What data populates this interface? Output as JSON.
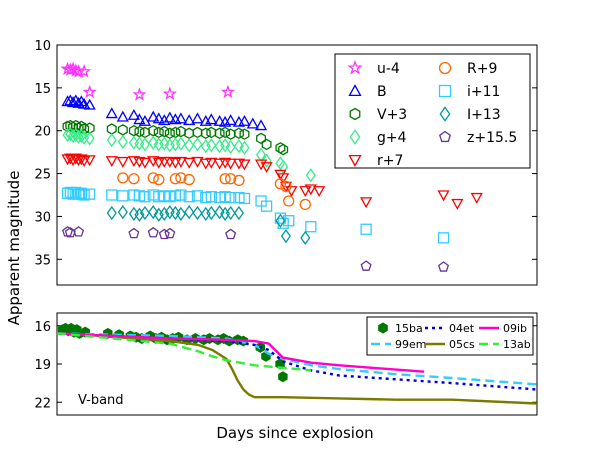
{
  "labels": {
    "ylabel": "Apparent magnitude",
    "xlabel": "Days since explosion",
    "panel_label": "V-band"
  },
  "chart_data": [
    {
      "type": "scatter",
      "ylabel": "Apparent magnitude",
      "ylim": [
        10,
        38
      ],
      "y_inverted": true,
      "yticks": [
        "10",
        "15",
        "20",
        "25",
        "30",
        "35"
      ],
      "xlim": [
        0,
        170
      ],
      "legend": "top-right",
      "series": [
        {
          "name": "u-4",
          "marker": "star",
          "color": "#ff33ff",
          "x": [
            2,
            3,
            4,
            5,
            6,
            8,
            10,
            28,
            39,
            60
          ],
          "y": [
            12.8,
            12.9,
            12.8,
            13.0,
            13.1,
            13.1,
            15.5,
            15.8,
            15.7,
            15.5
          ]
        },
        {
          "name": "B",
          "marker": "triangle-up",
          "color": "#0000ff",
          "x": [
            2,
            3,
            4,
            5,
            6,
            7,
            8,
            10,
            18,
            22,
            26,
            28,
            30,
            33,
            35,
            37,
            39,
            41,
            43,
            46,
            49,
            52,
            54,
            57,
            59,
            61,
            64,
            66,
            69,
            72
          ],
          "y": [
            16.6,
            16.5,
            16.7,
            16.5,
            16.8,
            16.6,
            16.9,
            17.0,
            18.0,
            18.4,
            18.2,
            18.7,
            18.9,
            18.4,
            18.6,
            18.8,
            18.5,
            18.7,
            18.6,
            18.8,
            18.6,
            18.9,
            18.7,
            18.9,
            19.0,
            18.8,
            19.0,
            18.9,
            19.2,
            19.4
          ]
        },
        {
          "name": "V+3",
          "marker": "hexagon",
          "color": "#007700",
          "x": [
            2,
            3,
            4,
            5,
            6,
            7,
            8,
            10,
            18,
            22,
            26,
            28,
            30,
            33,
            35,
            37,
            39,
            41,
            43,
            46,
            49,
            52,
            54,
            57,
            59,
            61,
            64,
            66,
            72,
            74,
            79,
            80
          ],
          "y": [
            19.5,
            19.4,
            19.6,
            19.4,
            19.7,
            19.5,
            19.8,
            19.7,
            19.8,
            19.9,
            20.0,
            20.1,
            20.2,
            20.0,
            20.2,
            20.1,
            20.3,
            20.2,
            20.1,
            20.3,
            20.2,
            20.3,
            20.2,
            20.3,
            20.2,
            20.4,
            20.3,
            20.4,
            20.9,
            21.6,
            22.0,
            22.2
          ]
        },
        {
          "name": "g+4",
          "marker": "diamond",
          "color": "#33ee88",
          "x": [
            2,
            3,
            4,
            5,
            6,
            7,
            8,
            10,
            18,
            22,
            26,
            28,
            30,
            33,
            35,
            37,
            39,
            41,
            43,
            46,
            49,
            52,
            54,
            57,
            59,
            61,
            64,
            66,
            72,
            74,
            79,
            80,
            90
          ],
          "y": [
            20.5,
            20.4,
            20.6,
            20.5,
            20.7,
            20.6,
            20.8,
            20.9,
            21.1,
            21.3,
            21.4,
            21.5,
            21.6,
            21.4,
            21.6,
            21.5,
            21.7,
            21.6,
            21.5,
            21.7,
            21.6,
            21.8,
            21.7,
            21.8,
            21.7,
            21.9,
            21.8,
            22.0,
            22.8,
            23.5,
            23.8,
            24.2,
            25.2
          ]
        },
        {
          "name": "r+7",
          "marker": "triangle-down",
          "color": "#ff0000",
          "x": [
            2,
            3,
            4,
            5,
            6,
            7,
            8,
            10,
            18,
            22,
            26,
            28,
            30,
            33,
            35,
            37,
            39,
            41,
            43,
            46,
            49,
            52,
            54,
            57,
            59,
            61,
            64,
            66,
            72,
            74,
            79,
            80,
            81,
            83,
            88,
            90,
            93,
            110,
            138,
            143,
            150
          ],
          "y": [
            23.3,
            23.2,
            23.4,
            23.2,
            23.4,
            23.3,
            23.5,
            23.4,
            23.5,
            23.6,
            23.5,
            23.6,
            23.7,
            23.5,
            23.7,
            23.6,
            23.6,
            23.7,
            23.6,
            23.7,
            23.6,
            23.8,
            23.7,
            23.8,
            23.7,
            23.8,
            23.8,
            23.9,
            23.9,
            24.2,
            25.1,
            25.5,
            26.5,
            27.0,
            27.0,
            26.8,
            27.0,
            28.3,
            27.5,
            28.5,
            27.8
          ]
        },
        {
          "name": "R+9",
          "marker": "circle",
          "color": "#ff6600",
          "x": [
            22,
            26,
            33,
            35,
            41,
            43,
            46,
            59,
            61,
            64,
            79,
            81,
            82,
            88
          ],
          "y": [
            25.5,
            25.6,
            25.5,
            25.7,
            25.6,
            25.5,
            25.7,
            25.6,
            25.6,
            25.8,
            26.2,
            26.5,
            28.2,
            28.6
          ]
        },
        {
          "name": "i+11",
          "marker": "square",
          "color": "#33ccff",
          "x": [
            2,
            3,
            4,
            5,
            6,
            7,
            8,
            10,
            18,
            22,
            26,
            28,
            30,
            33,
            35,
            37,
            39,
            41,
            43,
            46,
            49,
            52,
            54,
            57,
            59,
            61,
            64,
            66,
            72,
            74,
            79,
            80,
            82,
            90,
            110,
            138
          ],
          "y": [
            27.3,
            27.2,
            27.4,
            27.2,
            27.4,
            27.3,
            27.5,
            27.4,
            27.5,
            27.6,
            27.5,
            27.6,
            27.7,
            27.5,
            27.7,
            27.6,
            27.7,
            27.6,
            27.5,
            27.7,
            27.6,
            27.8,
            27.7,
            27.8,
            27.7,
            27.8,
            27.8,
            27.9,
            28.2,
            28.8,
            30.2,
            30.8,
            30.5,
            31.2,
            31.5,
            32.5
          ]
        },
        {
          "name": "I+13",
          "marker": "diamond",
          "color": "#009999",
          "x": [
            18,
            22,
            26,
            28,
            30,
            33,
            35,
            37,
            39,
            41,
            43,
            46,
            49,
            52,
            54,
            57,
            59,
            61,
            64,
            79,
            81,
            88
          ],
          "y": [
            29.6,
            29.5,
            29.7,
            29.8,
            29.6,
            29.5,
            29.8,
            29.7,
            29.5,
            29.6,
            29.7,
            29.5,
            29.6,
            29.7,
            29.6,
            29.5,
            29.7,
            29.6,
            29.6,
            30.5,
            32.3,
            32.5
          ]
        },
        {
          "name": "z+15.5",
          "marker": "pentagon",
          "color": "#663399",
          "x": [
            2,
            3,
            6,
            26,
            33,
            37,
            39,
            61,
            110,
            138
          ],
          "y": [
            31.8,
            31.9,
            31.8,
            32.0,
            31.9,
            32.1,
            32.0,
            32.1,
            35.8,
            35.9
          ]
        }
      ]
    },
    {
      "type": "line",
      "ylim": [
        15,
        23
      ],
      "y_inverted": true,
      "yticks": [
        "16",
        "19",
        "22"
      ],
      "xlim": [
        0,
        170
      ],
      "legend": "top-right",
      "series": [
        {
          "name": "15ba",
          "style": "markers",
          "color": "#007700",
          "x": [
            2,
            3,
            4,
            5,
            6,
            7,
            8,
            10,
            18,
            22,
            26,
            28,
            30,
            33,
            35,
            37,
            39,
            41,
            43,
            46,
            49,
            52,
            54,
            57,
            59,
            61,
            64,
            66,
            72,
            74,
            79,
            80
          ],
          "y": [
            16.3,
            16.2,
            16.4,
            16.2,
            16.5,
            16.3,
            16.6,
            16.5,
            16.6,
            16.7,
            16.8,
            16.9,
            17.0,
            16.8,
            17.0,
            16.9,
            17.1,
            17.0,
            16.9,
            17.1,
            17.0,
            17.1,
            17.0,
            17.1,
            17.0,
            17.2,
            17.1,
            17.2,
            17.7,
            18.4,
            19.0,
            20.0
          ]
        },
        {
          "name": "99em",
          "style": "dashed",
          "color": "#33ccff",
          "x": [
            0,
            20,
            40,
            60,
            70,
            75,
            80,
            90,
            100,
            120,
            140,
            170
          ],
          "y": [
            16.6,
            16.7,
            16.8,
            17.0,
            17.5,
            18.2,
            18.6,
            19.1,
            19.4,
            19.8,
            20.1,
            20.6
          ]
        },
        {
          "name": "04et",
          "style": "dotted",
          "color": "#0000dd",
          "x": [
            0,
            20,
            40,
            60,
            70,
            75,
            80,
            90,
            100,
            120,
            140,
            170
          ],
          "y": [
            16.6,
            16.8,
            17.0,
            17.2,
            17.5,
            17.9,
            18.8,
            19.5,
            19.9,
            20.2,
            20.5,
            21.0
          ]
        },
        {
          "name": "05cs",
          "style": "solid",
          "color": "#7a7a00",
          "x": [
            0,
            10,
            20,
            30,
            40,
            50,
            55,
            60,
            62,
            64,
            66,
            68,
            70,
            72,
            80,
            100,
            120,
            140,
            170
          ],
          "y": [
            16.6,
            16.7,
            16.9,
            17.0,
            17.2,
            17.5,
            17.9,
            18.6,
            19.4,
            20.3,
            21.0,
            21.4,
            21.6,
            21.6,
            21.6,
            21.7,
            21.8,
            21.8,
            22.1
          ]
        },
        {
          "name": "09ib",
          "style": "solid",
          "color": "#ff00cc",
          "x": [
            0,
            20,
            40,
            60,
            70,
            75,
            80,
            90,
            100,
            130
          ],
          "y": [
            16.6,
            16.8,
            17.0,
            17.1,
            17.2,
            17.4,
            18.5,
            18.9,
            19.1,
            19.6
          ]
        },
        {
          "name": "13ab",
          "style": "dashed",
          "color": "#33ee33",
          "x": [
            0,
            20,
            40,
            50,
            55,
            60,
            70,
            80,
            90
          ],
          "y": [
            16.6,
            17.0,
            17.4,
            18.0,
            18.4,
            18.7,
            19.1,
            19.3,
            19.5
          ]
        }
      ]
    }
  ]
}
